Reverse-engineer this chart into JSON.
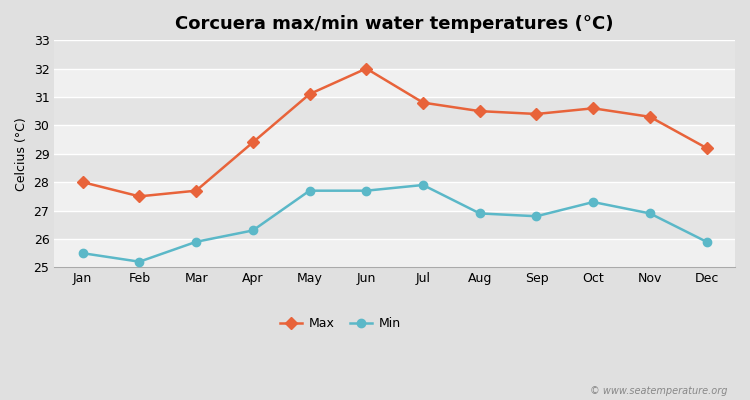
{
  "title": "Corcuera max/min water temperatures (°C)",
  "ylabel": "Celcius (°C)",
  "months": [
    "Jan",
    "Feb",
    "Mar",
    "Apr",
    "May",
    "Jun",
    "Jul",
    "Aug",
    "Sep",
    "Oct",
    "Nov",
    "Dec"
  ],
  "max_temps": [
    28.0,
    27.5,
    27.7,
    29.4,
    31.1,
    32.0,
    30.8,
    30.5,
    30.4,
    30.6,
    30.3,
    29.2
  ],
  "min_temps": [
    25.5,
    25.2,
    25.9,
    26.3,
    27.7,
    27.7,
    27.9,
    26.9,
    26.8,
    27.3,
    26.9,
    25.9
  ],
  "max_color": "#e8633a",
  "min_color": "#5bb8c8",
  "bg_color": "#e0e0e0",
  "plot_bg_light": "#f0f0f0",
  "plot_bg_dark": "#e4e4e4",
  "ylim": [
    25,
    33
  ],
  "yticks": [
    25,
    26,
    27,
    28,
    29,
    30,
    31,
    32,
    33
  ],
  "grid_color": "#ffffff",
  "watermark": "© www.seatemperature.org",
  "title_fontsize": 13,
  "label_fontsize": 9,
  "tick_fontsize": 9,
  "max_marker": "D",
  "min_marker": "o",
  "markersize_max": 6,
  "markersize_min": 6,
  "linewidth": 1.8
}
